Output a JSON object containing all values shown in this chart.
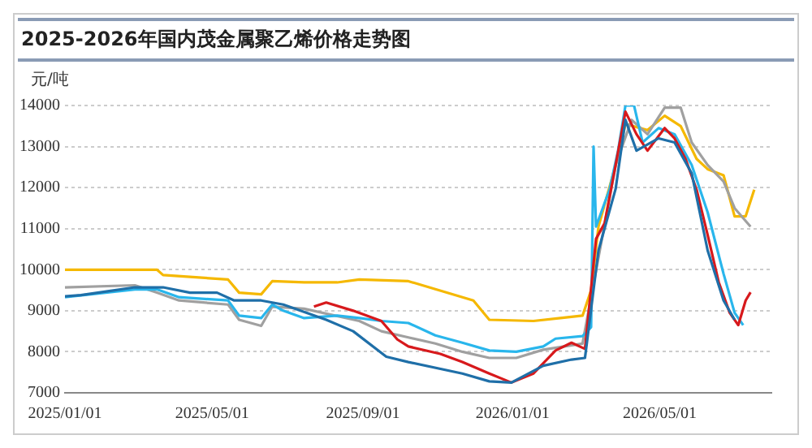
{
  "chart_data": {
    "type": "line",
    "title": "2025-2026年国内茂金属聚乙烯价格走势图",
    "ylabel": "元/吨",
    "xlim": [
      "2025-01-01",
      "2026-07-31"
    ],
    "xticks": [
      {
        "value": "2025-01-01",
        "label": "2025/01/01"
      },
      {
        "value": "2025-05-01",
        "label": "2025/05/01"
      },
      {
        "value": "2025-09-01",
        "label": "2025/09/01"
      },
      {
        "value": "2026-01-01",
        "label": "2026/01/01"
      },
      {
        "value": "2026-05-01",
        "label": "2026/05/01"
      }
    ],
    "ylim": [
      7000,
      14000
    ],
    "yticks": [
      7000,
      8000,
      9000,
      10000,
      11000,
      12000,
      13000,
      14000
    ],
    "grid": "y",
    "legend": false,
    "marker": "none",
    "line_style": "solid",
    "series": [
      {
        "color": "#1f6fa8",
        "x": [
          "2025-01-01",
          "2025-01-14",
          "2025-02-06",
          "2025-02-27",
          "2025-03-22",
          "2025-04-13",
          "2025-05-05",
          "2025-05-19",
          "2025-06-10",
          "2025-06-28",
          "2025-08-02",
          "2025-08-24",
          "2025-09-20",
          "2025-10-08",
          "2025-11-21",
          "2025-12-13",
          "2025-12-31",
          "2026-01-26",
          "2026-02-18",
          "2026-03-01",
          "2026-03-12",
          "2026-03-26",
          "2026-04-03",
          "2026-04-12",
          "2026-04-30",
          "2026-05-13",
          "2026-05-27",
          "2026-06-09",
          "2026-06-22",
          "2026-07-01"
        ],
        "values": [
          9350,
          9380,
          9480,
          9570,
          9570,
          9440,
          9440,
          9250,
          9250,
          9150,
          8780,
          8500,
          7880,
          7750,
          7470,
          7280,
          7250,
          7660,
          7810,
          7850,
          10470,
          11970,
          13650,
          12900,
          13200,
          13100,
          12350,
          10470,
          9250,
          8780
        ]
      },
      {
        "color": "#d7191c",
        "x": [
          "2025-07-23",
          "2025-08-02",
          "2025-08-24",
          "2025-09-16",
          "2025-09-29",
          "2025-10-08",
          "2025-11-03",
          "2025-11-21",
          "2025-12-13",
          "2025-12-31",
          "2026-01-18",
          "2026-02-05",
          "2026-02-18",
          "2026-03-01",
          "2026-03-10",
          "2026-03-17",
          "2026-03-26",
          "2026-04-03",
          "2026-04-12",
          "2026-04-21",
          "2026-05-05",
          "2026-05-13",
          "2026-05-22",
          "2026-05-31",
          "2026-06-09",
          "2026-06-18",
          "2026-06-27",
          "2026-07-04",
          "2026-07-10",
          "2026-07-14"
        ],
        "values": [
          9100,
          9200,
          9000,
          8750,
          8300,
          8130,
          7950,
          7750,
          7470,
          7250,
          7470,
          8030,
          8220,
          8070,
          10750,
          11130,
          12550,
          13850,
          13300,
          12900,
          13450,
          13200,
          12700,
          11950,
          10850,
          9700,
          8950,
          8650,
          9250,
          9450
        ]
      },
      {
        "color": "#29b6ec",
        "x": [
          "2025-01-01",
          "2025-02-27",
          "2025-03-17",
          "2025-04-04",
          "2025-05-14",
          "2025-05-23",
          "2025-06-10",
          "2025-06-19",
          "2025-06-28",
          "2025-07-15",
          "2025-08-11",
          "2025-08-29",
          "2025-09-16",
          "2025-10-08",
          "2025-10-30",
          "2025-11-21",
          "2025-12-13",
          "2026-01-04",
          "2026-01-26",
          "2026-02-05",
          "2026-02-27",
          "2026-03-06",
          "2026-03-08",
          "2026-03-10",
          "2026-03-21",
          "2026-03-28",
          "2026-04-03",
          "2026-04-10",
          "2026-04-17",
          "2026-04-30",
          "2026-05-13",
          "2026-05-27",
          "2026-06-09",
          "2026-06-22",
          "2026-07-01",
          "2026-07-08"
        ],
        "values": [
          9330,
          9520,
          9520,
          9330,
          9250,
          8880,
          8820,
          9150,
          9000,
          8820,
          8880,
          8820,
          8750,
          8700,
          8400,
          8220,
          8030,
          8000,
          8130,
          8320,
          8380,
          8600,
          13000,
          11050,
          11950,
          12900,
          14000,
          14000,
          13100,
          13450,
          13300,
          12550,
          11400,
          9900,
          8950,
          8650
        ]
      },
      {
        "color": "#a0a0a0",
        "x": [
          "2025-01-01",
          "2025-02-27",
          "2025-03-17",
          "2025-04-04",
          "2025-05-14",
          "2025-05-23",
          "2025-06-10",
          "2025-06-19",
          "2025-07-15",
          "2025-08-29",
          "2025-09-16",
          "2025-10-08",
          "2025-10-30",
          "2025-11-21",
          "2025-12-13",
          "2026-01-04",
          "2026-01-26",
          "2026-02-27",
          "2026-03-26",
          "2026-04-08",
          "2026-04-21",
          "2026-05-05",
          "2026-05-18",
          "2026-05-27",
          "2026-06-09",
          "2026-06-22",
          "2026-07-01",
          "2026-07-14"
        ],
        "values": [
          9570,
          9620,
          9440,
          9250,
          9150,
          8780,
          8630,
          9100,
          9050,
          8750,
          8500,
          8350,
          8200,
          8000,
          7850,
          7850,
          8050,
          8200,
          12550,
          13650,
          13300,
          13950,
          13950,
          13100,
          12550,
          12150,
          11500,
          11050
        ]
      },
      {
        "color": "#f5b800",
        "x": [
          "2025-01-01",
          "2025-03-17",
          "2025-03-22",
          "2025-05-14",
          "2025-05-23",
          "2025-06-10",
          "2025-06-19",
          "2025-07-15",
          "2025-08-11",
          "2025-08-29",
          "2025-10-08",
          "2025-11-30",
          "2025-12-13",
          "2026-01-18",
          "2026-02-09",
          "2026-02-27",
          "2026-03-06",
          "2026-03-12",
          "2026-03-26",
          "2026-04-03",
          "2026-04-21",
          "2026-05-05",
          "2026-05-18",
          "2026-05-31",
          "2026-06-09",
          "2026-06-22",
          "2026-07-01",
          "2026-07-10",
          "2026-07-17"
        ],
        "values": [
          10000,
          10000,
          9870,
          9760,
          9440,
          9400,
          9720,
          9690,
          9690,
          9760,
          9720,
          9250,
          8780,
          8750,
          8820,
          8880,
          9500,
          11050,
          12550,
          13550,
          13400,
          13750,
          13500,
          12700,
          12450,
          12300,
          11300,
          11300,
          11950
        ]
      }
    ]
  }
}
